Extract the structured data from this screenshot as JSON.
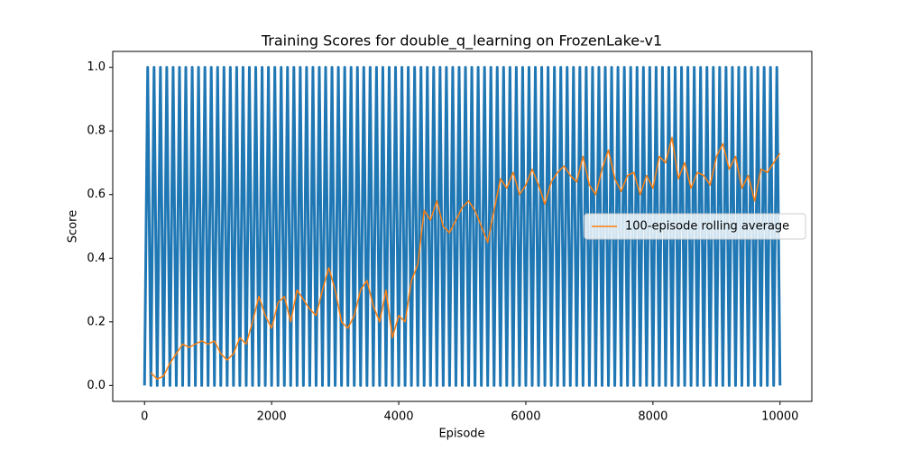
{
  "chart_data": {
    "type": "line",
    "title": "Training Scores for double_q_learning on FrozenLake-v1",
    "x_label": "Episode",
    "y_label": "Score",
    "xlim": [
      -500,
      10500
    ],
    "xticks": [
      0,
      2000,
      4000,
      6000,
      8000,
      10000
    ],
    "ylim": [
      -0.05,
      1.05
    ],
    "yticks": [
      {
        "value": 0,
        "label": "0.0"
      },
      0.2,
      0.4,
      0.6,
      0.8,
      {
        "value": 1,
        "label": "1.0"
      }
    ],
    "legend": "center right",
    "series": [
      {
        "color": "#1f77b4",
        "x": [
          0,
          50,
          100,
          150,
          200,
          250,
          300,
          350,
          400,
          450,
          500,
          550,
          600,
          650,
          700,
          750,
          800,
          850,
          900,
          950,
          1000,
          1050,
          1100,
          1150,
          1200,
          1250,
          1300,
          1350,
          1400,
          1450,
          1500,
          1550,
          1600,
          1650,
          1700,
          1750,
          1800,
          1850,
          1900,
          1950,
          2000,
          2050,
          2100,
          2150,
          2200,
          2250,
          2300,
          2350,
          2400,
          2450,
          2500,
          2550,
          2600,
          2650,
          2700,
          2750,
          2800,
          2850,
          2900,
          2950,
          3000,
          3050,
          3100,
          3150,
          3200,
          3250,
          3300,
          3350,
          3400,
          3450,
          3500,
          3550,
          3600,
          3650,
          3700,
          3750,
          3800,
          3850,
          3900,
          3950,
          4000,
          4050,
          4100,
          4150,
          4200,
          4250,
          4300,
          4350,
          4400,
          4450,
          4500,
          4550,
          4600,
          4650,
          4700,
          4750,
          4800,
          4850,
          4900,
          4950,
          5000,
          5050,
          5100,
          5150,
          5200,
          5250,
          5300,
          5350,
          5400,
          5450,
          5500,
          5550,
          5600,
          5650,
          5700,
          5750,
          5800,
          5850,
          5900,
          5950,
          6000,
          6050,
          6100,
          6150,
          6200,
          6250,
          6300,
          6350,
          6400,
          6450,
          6500,
          6550,
          6600,
          6650,
          6700,
          6750,
          6800,
          6850,
          6900,
          6950,
          7000,
          7050,
          7100,
          7150,
          7200,
          7250,
          7300,
          7350,
          7400,
          7450,
          7500,
          7550,
          7600,
          7650,
          7700,
          7750,
          7800,
          7850,
          7900,
          7950,
          8000,
          8050,
          8100,
          8150,
          8200,
          8250,
          8300,
          8350,
          8400,
          8450,
          8500,
          8550,
          8600,
          8650,
          8700,
          8750,
          8800,
          8850,
          8900,
          8950,
          9000,
          9050,
          9100,
          9150,
          9200,
          9250,
          9300,
          9350,
          9400,
          9450,
          9500,
          9550,
          9600,
          9650,
          9700,
          9750,
          9800,
          9850,
          9900,
          9950,
          10000
        ],
        "values": [
          0,
          1,
          0,
          1,
          0,
          1,
          0,
          1,
          0,
          1,
          0,
          1,
          0,
          1,
          0,
          1,
          0,
          1,
          0,
          1,
          0,
          1,
          0,
          1,
          0,
          1,
          0,
          1,
          0,
          1,
          0,
          1,
          0,
          1,
          0,
          1,
          0,
          1,
          0,
          1,
          0,
          1,
          0,
          1,
          0,
          1,
          0,
          1,
          0,
          1,
          0,
          1,
          0,
          1,
          0,
          1,
          0,
          1,
          0,
          1,
          0,
          1,
          0,
          1,
          0,
          1,
          0,
          1,
          0,
          1,
          0,
          1,
          0,
          1,
          0,
          1,
          0,
          1,
          0,
          1,
          0,
          1,
          0,
          1,
          0,
          1,
          0,
          1,
          0,
          1,
          0,
          1,
          0,
          1,
          0,
          1,
          0,
          1,
          0,
          1,
          0,
          1,
          0,
          1,
          0,
          1,
          0,
          1,
          0,
          1,
          0,
          1,
          0,
          1,
          0,
          1,
          0,
          1,
          0,
          1,
          0,
          1,
          0,
          1,
          0,
          1,
          0,
          1,
          0,
          1,
          0,
          1,
          0,
          1,
          0,
          1,
          0,
          1,
          0,
          1,
          0,
          1,
          0,
          1,
          0,
          1,
          0,
          1,
          0,
          1,
          0,
          1,
          0,
          1,
          0,
          1,
          0,
          1,
          0,
          1,
          0,
          1,
          0,
          1,
          0,
          1,
          0,
          1,
          0,
          1,
          0,
          1,
          0,
          1,
          0,
          1,
          0,
          1,
          0,
          1,
          0,
          1,
          0,
          1,
          0,
          1,
          0,
          1,
          0,
          1,
          0,
          1,
          0,
          1,
          0,
          1,
          0,
          1,
          0,
          1,
          0
        ]
      },
      {
        "name": "100-episode rolling average",
        "color": "#ff7f0e",
        "x": [
          100,
          200,
          300,
          400,
          500,
          600,
          700,
          800,
          900,
          1000,
          1100,
          1200,
          1300,
          1400,
          1500,
          1600,
          1700,
          1800,
          1900,
          2000,
          2100,
          2200,
          2300,
          2400,
          2500,
          2600,
          2700,
          2800,
          2900,
          3000,
          3100,
          3200,
          3300,
          3400,
          3500,
          3600,
          3700,
          3800,
          3900,
          4000,
          4100,
          4200,
          4300,
          4400,
          4500,
          4600,
          4700,
          4800,
          4900,
          5000,
          5100,
          5200,
          5300,
          5400,
          5500,
          5600,
          5700,
          5800,
          5900,
          6000,
          6100,
          6200,
          6300,
          6400,
          6500,
          6600,
          6700,
          6800,
          6900,
          7000,
          7100,
          7200,
          7300,
          7400,
          7500,
          7600,
          7700,
          7800,
          7900,
          8000,
          8100,
          8200,
          8300,
          8400,
          8500,
          8600,
          8700,
          8800,
          8900,
          9000,
          9100,
          9200,
          9300,
          9400,
          9500,
          9600,
          9700,
          9800,
          9900,
          9999
        ],
        "values": [
          0.04,
          0.02,
          0.03,
          0.07,
          0.1,
          0.13,
          0.12,
          0.13,
          0.14,
          0.13,
          0.14,
          0.1,
          0.08,
          0.1,
          0.15,
          0.13,
          0.2,
          0.28,
          0.22,
          0.18,
          0.26,
          0.28,
          0.2,
          0.3,
          0.27,
          0.24,
          0.22,
          0.3,
          0.37,
          0.3,
          0.2,
          0.18,
          0.22,
          0.3,
          0.33,
          0.25,
          0.2,
          0.3,
          0.15,
          0.22,
          0.2,
          0.33,
          0.38,
          0.55,
          0.52,
          0.58,
          0.5,
          0.48,
          0.52,
          0.56,
          0.58,
          0.55,
          0.5,
          0.45,
          0.55,
          0.65,
          0.62,
          0.67,
          0.6,
          0.63,
          0.68,
          0.63,
          0.57,
          0.64,
          0.67,
          0.69,
          0.66,
          0.64,
          0.72,
          0.63,
          0.6,
          0.68,
          0.74,
          0.65,
          0.61,
          0.66,
          0.67,
          0.6,
          0.66,
          0.62,
          0.72,
          0.7,
          0.78,
          0.65,
          0.7,
          0.62,
          0.67,
          0.66,
          0.63,
          0.72,
          0.76,
          0.68,
          0.72,
          0.62,
          0.66,
          0.58,
          0.68,
          0.67,
          0.7,
          0.73
        ]
      }
    ]
  }
}
